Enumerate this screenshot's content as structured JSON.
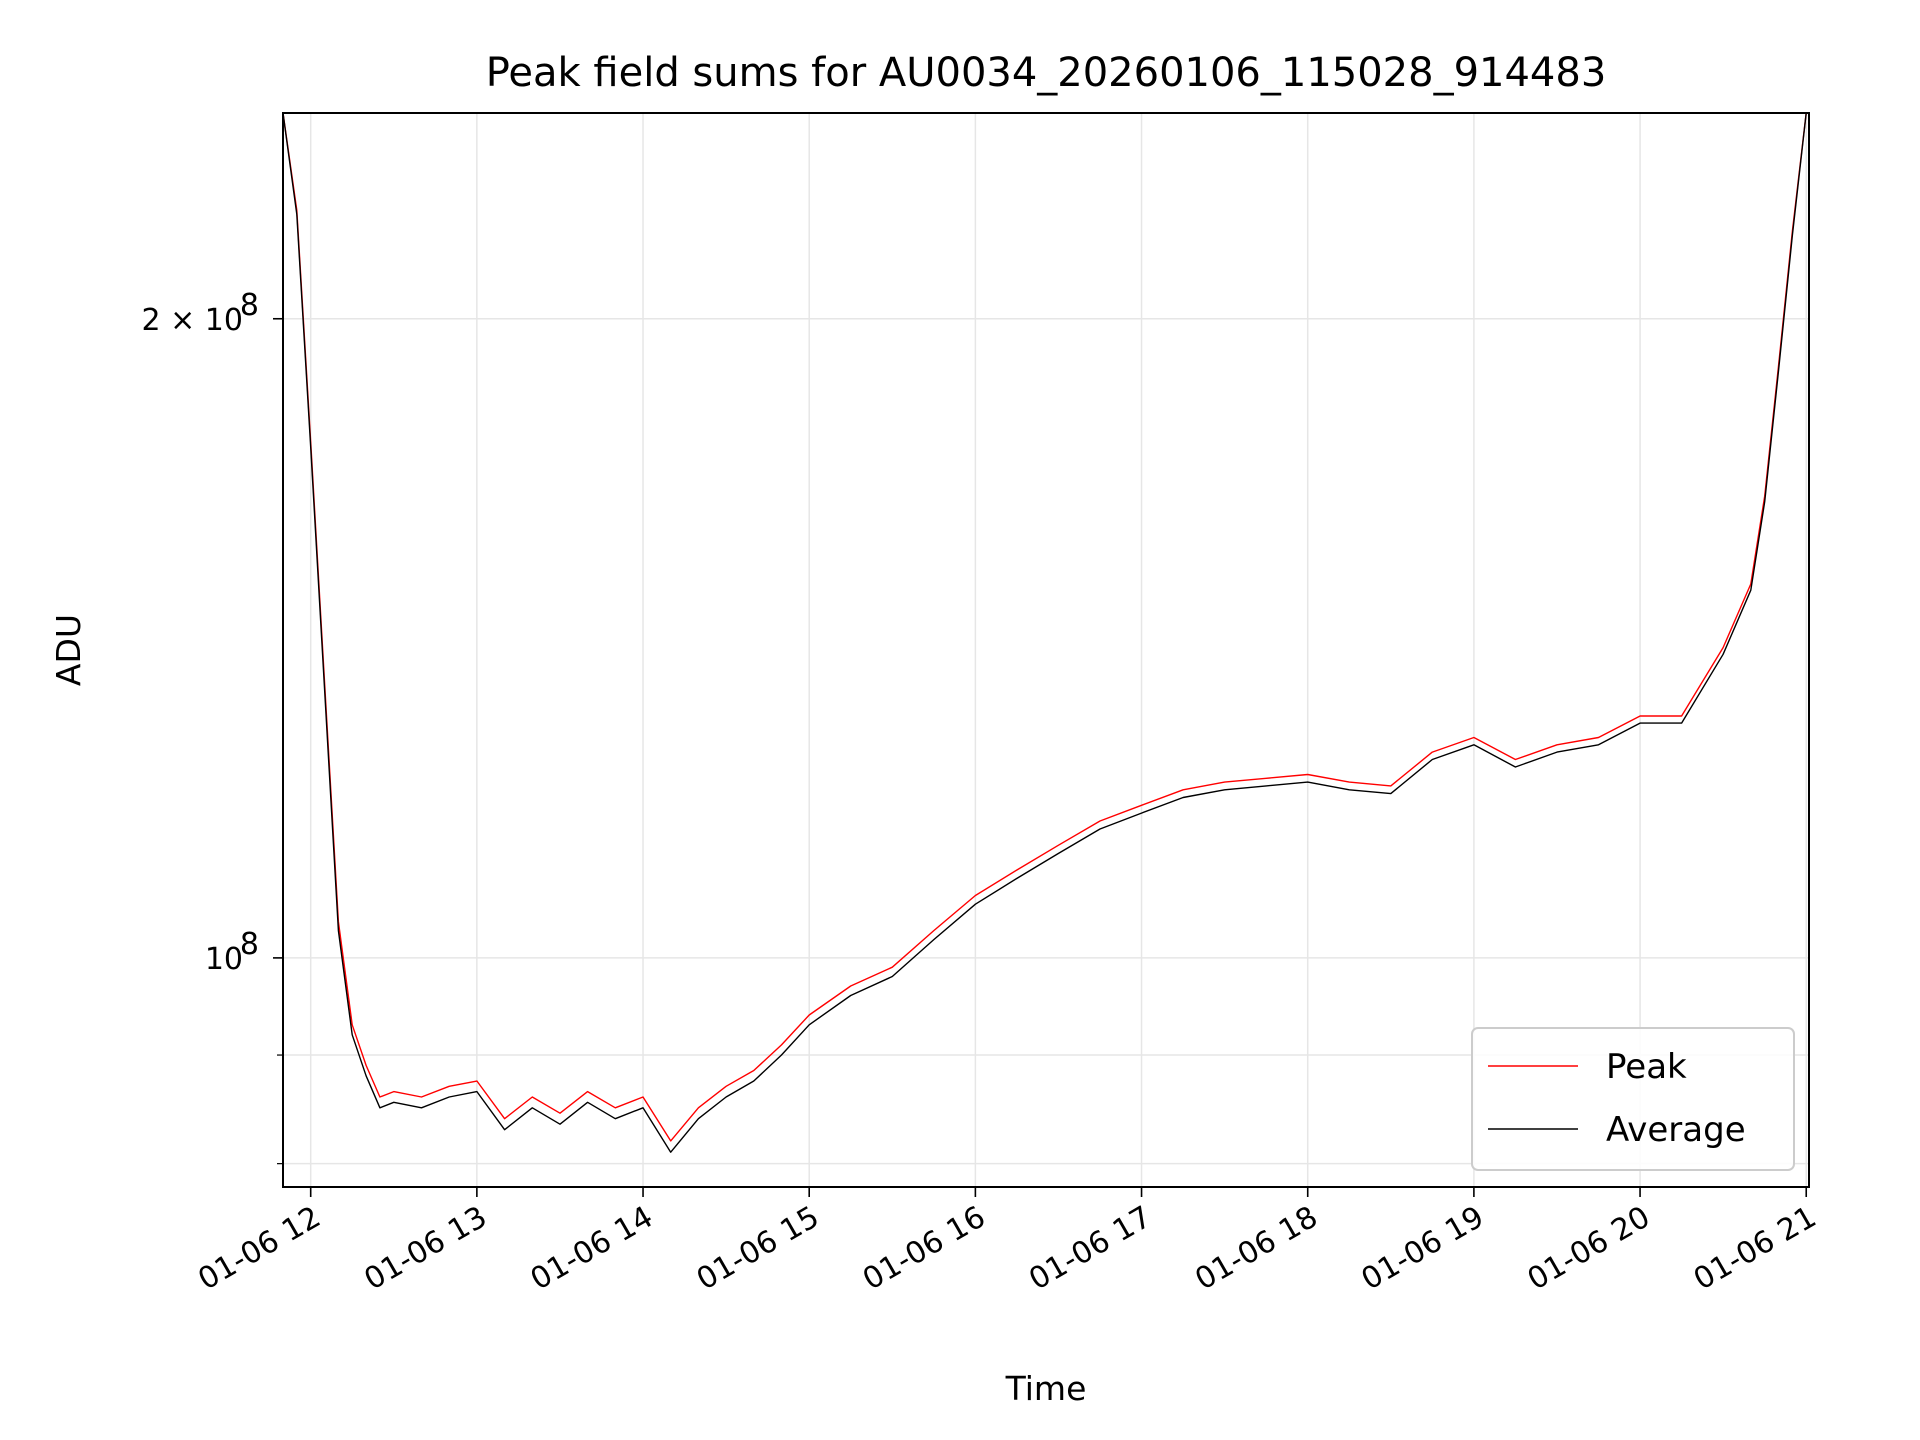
{
  "chart_data": {
    "type": "line",
    "title": "Peak field sums for AU0034_20260106_115028_914483",
    "xlabel": "Time",
    "ylabel": "ADU",
    "y_scale": "log",
    "ylim": [
      78000000,
      250000000
    ],
    "xlim": [
      "2026-01-06 11:50",
      "2026-01-06 21:01"
    ],
    "grid": true,
    "legend_placement": "lower-right",
    "x_ticks": [
      "01-06 12",
      "01-06 13",
      "01-06 14",
      "01-06 15",
      "01-06 16",
      "01-06 17",
      "01-06 18",
      "01-06 19",
      "01-06 20",
      "01-06 21"
    ],
    "x_tick_times": [
      "2026-01-06 12:00",
      "2026-01-06 13:00",
      "2026-01-06 14:00",
      "2026-01-06 15:00",
      "2026-01-06 16:00",
      "2026-01-06 17:00",
      "2026-01-06 18:00",
      "2026-01-06 19:00",
      "2026-01-06 20:00",
      "2026-01-06 21:00"
    ],
    "y_major_ticks": [
      {
        "value": 100000000,
        "label_base": "10",
        "label_exp": "8"
      },
      {
        "value": 200000000,
        "label_base": "2 × 10",
        "label_exp": "8"
      }
    ],
    "y_minor_ticks": [
      80000000,
      90000000
    ],
    "x": [
      "2026-01-06 11:50",
      "2026-01-06 11:55",
      "2026-01-06 12:00",
      "2026-01-06 12:05",
      "2026-01-06 12:10",
      "2026-01-06 12:15",
      "2026-01-06 12:20",
      "2026-01-06 12:25",
      "2026-01-06 12:30",
      "2026-01-06 12:40",
      "2026-01-06 12:50",
      "2026-01-06 13:00",
      "2026-01-06 13:10",
      "2026-01-06 13:20",
      "2026-01-06 13:30",
      "2026-01-06 13:40",
      "2026-01-06 13:50",
      "2026-01-06 14:00",
      "2026-01-06 14:10",
      "2026-01-06 14:20",
      "2026-01-06 14:30",
      "2026-01-06 14:40",
      "2026-01-06 14:50",
      "2026-01-06 15:00",
      "2026-01-06 15:15",
      "2026-01-06 15:30",
      "2026-01-06 15:45",
      "2026-01-06 16:00",
      "2026-01-06 16:15",
      "2026-01-06 16:30",
      "2026-01-06 16:45",
      "2026-01-06 17:00",
      "2026-01-06 17:15",
      "2026-01-06 17:30",
      "2026-01-06 17:45",
      "2026-01-06 18:00",
      "2026-01-06 18:15",
      "2026-01-06 18:30",
      "2026-01-06 18:45",
      "2026-01-06 19:00",
      "2026-01-06 19:15",
      "2026-01-06 19:30",
      "2026-01-06 19:45",
      "2026-01-06 20:00",
      "2026-01-06 20:15",
      "2026-01-06 20:30",
      "2026-01-06 20:40",
      "2026-01-06 20:45",
      "2026-01-06 20:50",
      "2026-01-06 20:55",
      "2026-01-06 21:00"
    ],
    "series": [
      {
        "name": "Peak",
        "color": "#ff0000",
        "values": [
          250000000,
          225000000,
          175000000,
          135000000,
          104000000,
          93000000,
          89000000,
          86000000,
          86500000,
          86000000,
          87000000,
          87500000,
          84000000,
          86000000,
          84500000,
          86500000,
          85000000,
          86000000,
          82000000,
          85000000,
          87000000,
          88500000,
          91000000,
          94000000,
          97000000,
          99000000,
          103000000,
          107000000,
          110000000,
          113000000,
          116000000,
          118000000,
          120000000,
          121000000,
          121500000,
          122000000,
          121000000,
          120500000,
          125000000,
          127000000,
          124000000,
          126000000,
          127000000,
          130000000,
          130000000,
          140000000,
          150000000,
          165000000,
          190000000,
          220000000,
          250000000
        ]
      },
      {
        "name": "Average",
        "color": "#000000",
        "values": [
          250000000,
          224000000,
          174000000,
          134000000,
          103000000,
          92000000,
          88000000,
          85000000,
          85500000,
          85000000,
          86000000,
          86500000,
          83000000,
          85000000,
          83500000,
          85500000,
          84000000,
          85000000,
          81000000,
          84000000,
          86000000,
          87500000,
          90000000,
          93000000,
          96000000,
          98000000,
          102000000,
          106000000,
          109000000,
          112000000,
          115000000,
          117000000,
          119000000,
          120000000,
          120500000,
          121000000,
          120000000,
          119500000,
          124000000,
          126000000,
          123000000,
          125000000,
          126000000,
          129000000,
          129000000,
          139000000,
          149000000,
          164000000,
          189000000,
          219000000,
          250000000
        ]
      }
    ]
  }
}
